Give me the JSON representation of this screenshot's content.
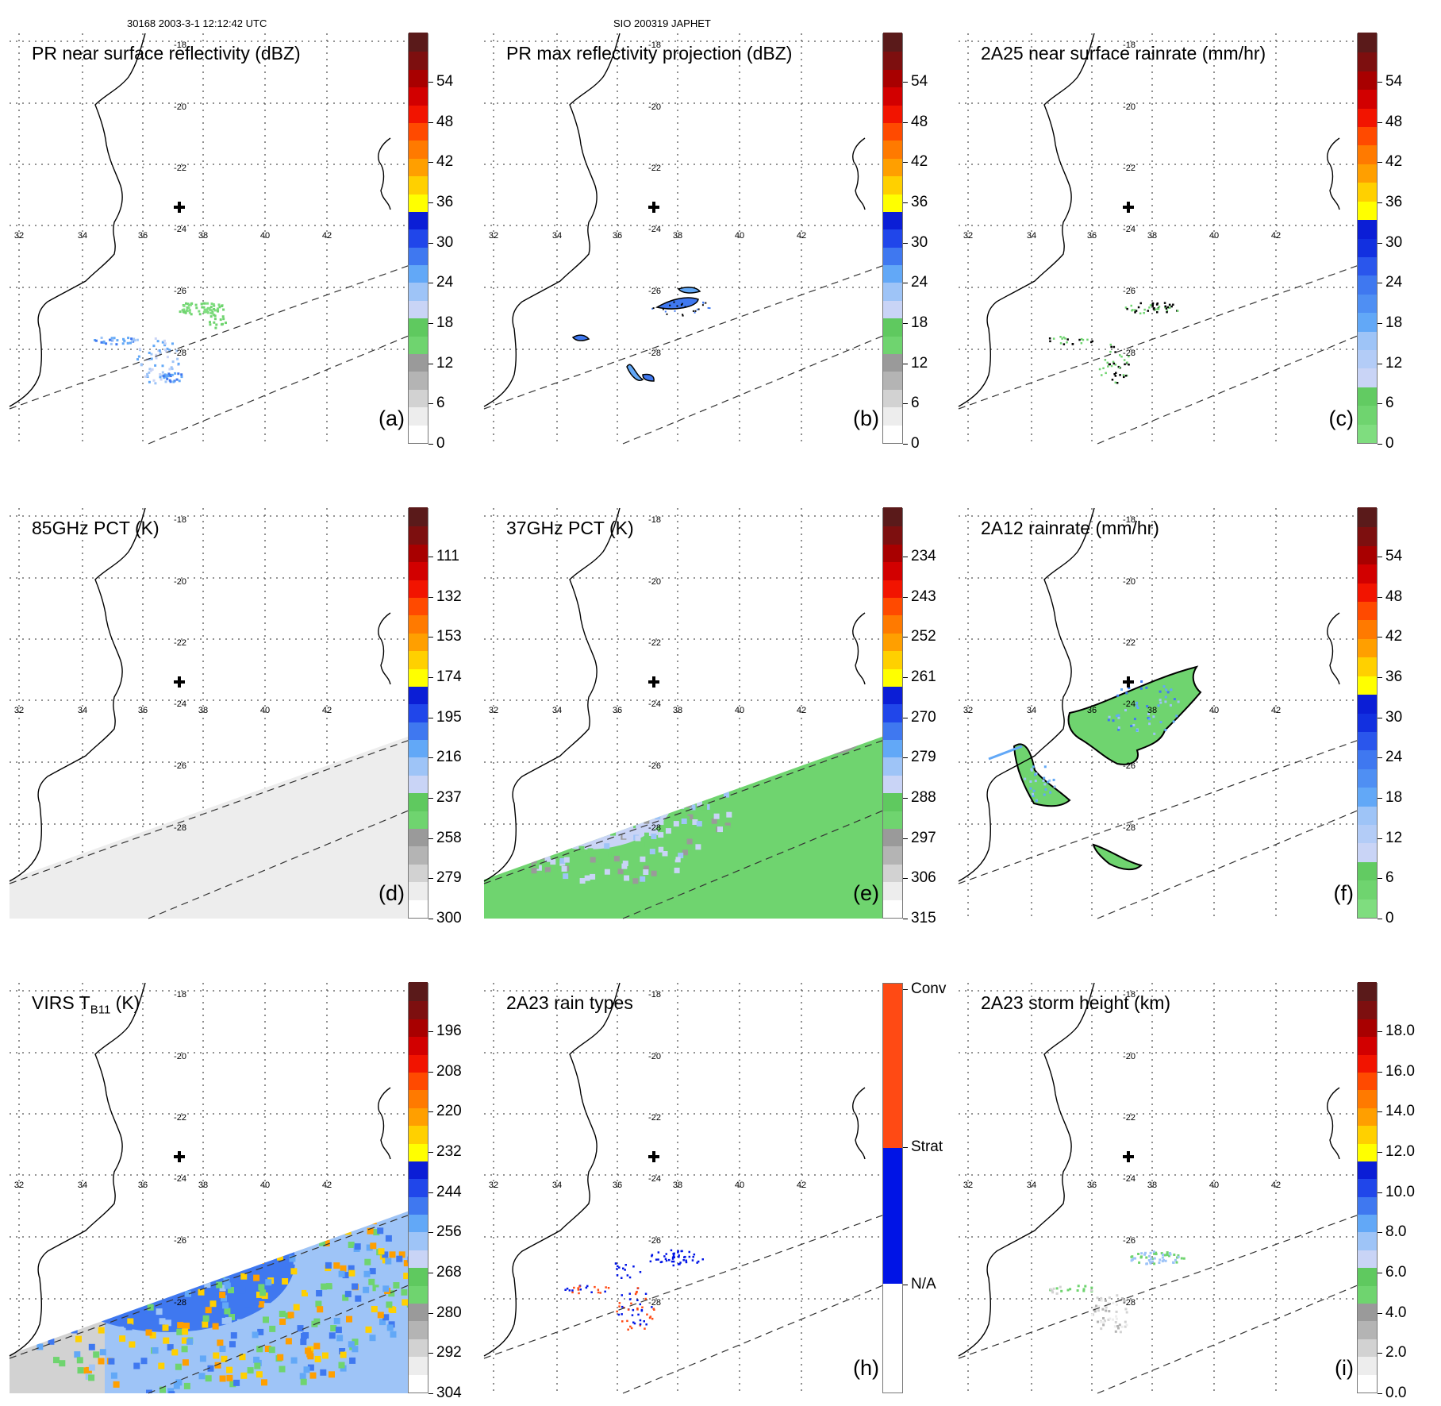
{
  "header": {
    "orbit_time": "30168 2003-3-1 12:12:42 UTC",
    "storm": "SIO 200319 JAPHET"
  },
  "map_labels": {
    "lon": [
      "32",
      "34",
      "36",
      "38",
      "40",
      "42"
    ],
    "lat": [
      "-18",
      "-20",
      "-22",
      "-24",
      "-26",
      "-28"
    ]
  },
  "panels": [
    {
      "id": "a",
      "letter": "(a)",
      "title": "PR near surface reflectivity (dBZ)",
      "field": "pr-sparse",
      "colorbar": {
        "ticks": [
          "0",
          "6",
          "12",
          "18",
          "24",
          "30",
          "36",
          "42",
          "48",
          "54"
        ],
        "colors": [
          "#ffffff",
          "#ededed",
          "#d2d2d2",
          "#b4b4b4",
          "#9a9a9a",
          "#6fd46f",
          "#5fc95f",
          "#c9d4f6",
          "#9ec4f7",
          "#62a8f7",
          "#3f78f0",
          "#2046ea",
          "#0b1ed6",
          "#ffff00",
          "#ffd000",
          "#ff9f00",
          "#ff7a00",
          "#ff4a00",
          "#f21400",
          "#d20000",
          "#a80000",
          "#7d0f0f",
          "#5a1a1a"
        ]
      }
    },
    {
      "id": "b",
      "letter": "(b)",
      "title": "PR max reflectivity projection (dBZ)",
      "field": "pr-max",
      "colorbar": {
        "ticks": [
          "0",
          "6",
          "12",
          "18",
          "24",
          "30",
          "36",
          "42",
          "48",
          "54"
        ],
        "colors": [
          "#ffffff",
          "#ededed",
          "#d2d2d2",
          "#b4b4b4",
          "#9a9a9a",
          "#6fd46f",
          "#5fc95f",
          "#c9d4f6",
          "#9ec4f7",
          "#62a8f7",
          "#3f78f0",
          "#2046ea",
          "#0b1ed6",
          "#ffff00",
          "#ffd000",
          "#ff9f00",
          "#ff7a00",
          "#ff4a00",
          "#f21400",
          "#d20000",
          "#a80000",
          "#7d0f0f",
          "#5a1a1a"
        ]
      }
    },
    {
      "id": "c",
      "letter": "(c)",
      "title": "2A25 near surface rainrate (mm/hr)",
      "field": "rain-sparse",
      "colorbar": {
        "ticks": [
          "0",
          "6",
          "12",
          "18",
          "24",
          "30",
          "36",
          "42",
          "48",
          "54"
        ],
        "colors": [
          "#7fdd7f",
          "#6fd46f",
          "#62cb62",
          "#c9d4f6",
          "#b3ccf7",
          "#9ec4f7",
          "#62a8f7",
          "#4f8ff3",
          "#3f78f0",
          "#2a56ec",
          "#1230e0",
          "#0b1ed6",
          "#ffff00",
          "#ffd000",
          "#ff9f00",
          "#ff7a00",
          "#ff4a00",
          "#f21400",
          "#d20000",
          "#a80000",
          "#7d0f0f",
          "#5a1a1a"
        ]
      }
    },
    {
      "id": "d",
      "letter": "(d)",
      "title": "85GHz PCT (K)",
      "field": "pct85",
      "colorbar": {
        "ticks": [
          "300",
          "279",
          "258",
          "237",
          "216",
          "195",
          "174",
          "153",
          "132",
          "111"
        ],
        "colors": [
          "#ffffff",
          "#ededed",
          "#d2d2d2",
          "#b4b4b4",
          "#9a9a9a",
          "#6fd46f",
          "#5fc95f",
          "#c9d4f6",
          "#9ec4f7",
          "#62a8f7",
          "#3f78f0",
          "#2046ea",
          "#0b1ed6",
          "#ffff00",
          "#ffd000",
          "#ff9f00",
          "#ff7a00",
          "#ff4a00",
          "#f21400",
          "#d20000",
          "#a80000",
          "#7d0f0f",
          "#5a1a1a"
        ]
      }
    },
    {
      "id": "e",
      "letter": "(e)",
      "title": "37GHz PCT (K)",
      "field": "pct37",
      "colorbar": {
        "ticks": [
          "315",
          "306",
          "297",
          "288",
          "279",
          "270",
          "261",
          "252",
          "243",
          "234"
        ],
        "colors": [
          "#ffffff",
          "#ededed",
          "#d2d2d2",
          "#b4b4b4",
          "#9a9a9a",
          "#6fd46f",
          "#5fc95f",
          "#c9d4f6",
          "#9ec4f7",
          "#62a8f7",
          "#3f78f0",
          "#2046ea",
          "#0b1ed6",
          "#ffff00",
          "#ffd000",
          "#ff9f00",
          "#ff7a00",
          "#ff4a00",
          "#f21400",
          "#d20000",
          "#a80000",
          "#7d0f0f",
          "#5a1a1a"
        ]
      }
    },
    {
      "id": "f",
      "letter": "(f)",
      "title": "2A12 rainrate (mm/hr)",
      "field": "tmi-rain",
      "colorbar": {
        "ticks": [
          "0",
          "6",
          "12",
          "18",
          "24",
          "30",
          "36",
          "42",
          "48",
          "54"
        ],
        "colors": [
          "#7fdd7f",
          "#6fd46f",
          "#62cb62",
          "#c9d4f6",
          "#b3ccf7",
          "#9ec4f7",
          "#62a8f7",
          "#4f8ff3",
          "#3f78f0",
          "#2a56ec",
          "#1230e0",
          "#0b1ed6",
          "#ffff00",
          "#ffd000",
          "#ff9f00",
          "#ff7a00",
          "#ff4a00",
          "#f21400",
          "#d20000",
          "#a80000",
          "#7d0f0f",
          "#5a1a1a"
        ]
      }
    },
    {
      "id": "g",
      "letter": "",
      "title": "VIRS T",
      "title_sub": "B11",
      "title_suffix": " (K)",
      "field": "virs",
      "colorbar": {
        "ticks": [
          "304",
          "292",
          "280",
          "268",
          "256",
          "244",
          "232",
          "220",
          "208",
          "196"
        ],
        "colors": [
          "#ffffff",
          "#ededed",
          "#d2d2d2",
          "#b4b4b4",
          "#9a9a9a",
          "#6fd46f",
          "#5fc95f",
          "#c9d4f6",
          "#9ec4f7",
          "#62a8f7",
          "#3f78f0",
          "#2046ea",
          "#0b1ed6",
          "#ffff00",
          "#ffd000",
          "#ff9f00",
          "#ff7a00",
          "#ff4a00",
          "#f21400",
          "#d20000",
          "#a80000",
          "#7d0f0f",
          "#5a1a1a"
        ]
      }
    },
    {
      "id": "h",
      "letter": "(h)",
      "title": "2A23 rain types",
      "field": "rain-types",
      "colorbar": {
        "categorical": true,
        "labels": [
          "N/A",
          "Strat",
          "Conv"
        ],
        "colors": [
          "#ffffff",
          "#0014e6",
          "#ff4a14"
        ]
      }
    },
    {
      "id": "i",
      "letter": "(i)",
      "title": "2A23 storm height (km)",
      "field": "storm-height",
      "colorbar": {
        "ticks": [
          "0.0",
          "2.0",
          "4.0",
          "6.0",
          "8.0",
          "10.0",
          "12.0",
          "14.0",
          "16.0",
          "18.0"
        ],
        "colors": [
          "#ffffff",
          "#ededed",
          "#d2d2d2",
          "#b4b4b4",
          "#9a9a9a",
          "#6fd46f",
          "#5fc95f",
          "#c9d4f6",
          "#9ec4f7",
          "#62a8f7",
          "#3f78f0",
          "#2046ea",
          "#0b1ed6",
          "#ffff00",
          "#ffd000",
          "#ff9f00",
          "#ff7a00",
          "#ff4a00",
          "#f21400",
          "#d20000",
          "#a80000",
          "#7d0f0f",
          "#5a1a1a"
        ]
      }
    }
  ]
}
